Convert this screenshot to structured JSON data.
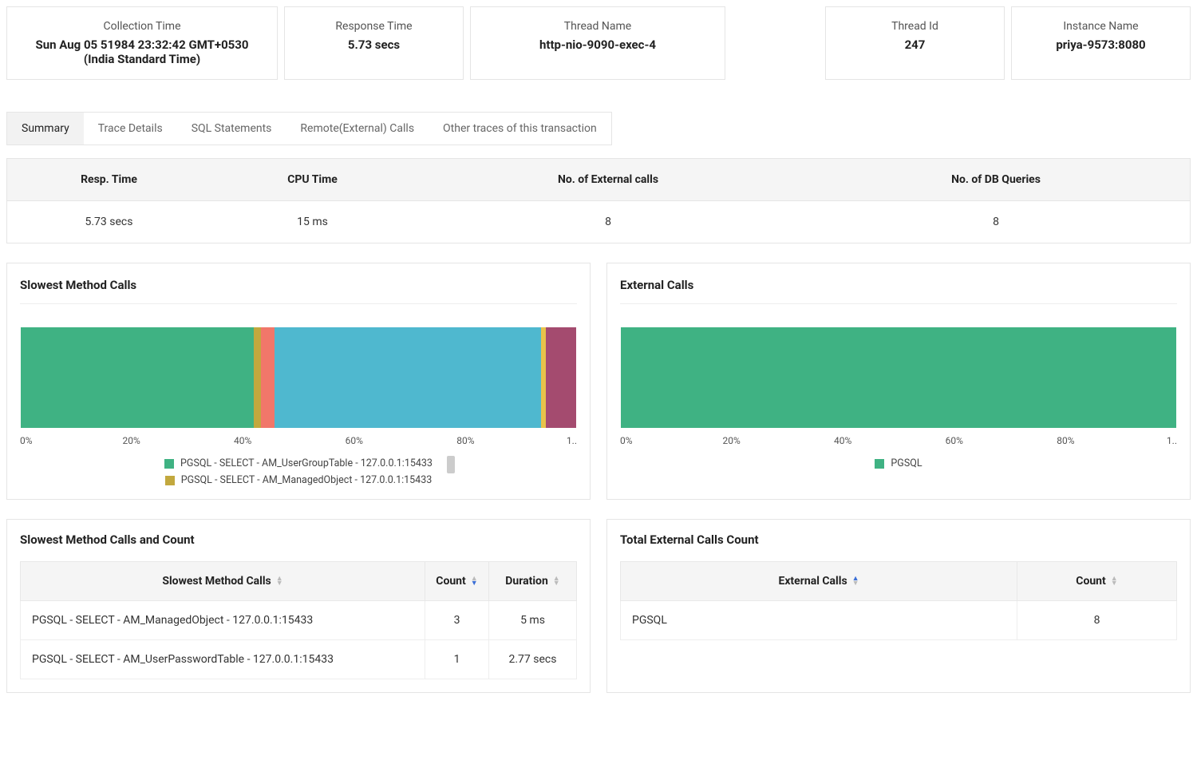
{
  "colors": {
    "green": "#3fb283",
    "olive": "#c2a83e",
    "coral": "#f1776a",
    "teal": "#4fb8cf",
    "gold": "#e8c24a",
    "plum": "#a44b6f",
    "panel_border": "#e5e5e5",
    "header_bg": "#f5f5f5"
  },
  "info_cards": [
    {
      "label": "Collection Time",
      "value": "Sun Aug 05 51984 23:32:42 GMT+0530 (India Standard Time)"
    },
    {
      "label": "Response Time",
      "value": "5.73 secs"
    },
    {
      "label": "Thread Name",
      "value": "http-nio-9090-exec-4"
    },
    {
      "label": "Thread Id",
      "value": "247"
    },
    {
      "label": "Instance Name",
      "value": "priya-9573:8080"
    }
  ],
  "tabs": [
    {
      "label": "Summary",
      "active": true
    },
    {
      "label": "Trace Details",
      "active": false
    },
    {
      "label": "SQL Statements",
      "active": false
    },
    {
      "label": "Remote(External) Calls",
      "active": false
    },
    {
      "label": "Other traces of this transaction",
      "active": false
    }
  ],
  "stats": {
    "headers": [
      "Resp. Time",
      "CPU Time",
      "No. of External calls",
      "No. of DB Queries"
    ],
    "values": [
      "5.73 secs",
      "15 ms",
      "8",
      "8"
    ]
  },
  "slowest_chart": {
    "title": "Slowest Method Calls",
    "segments": [
      {
        "pct": 42,
        "color": "#3fb283"
      },
      {
        "pct": 1.2,
        "color": "#c2a83e"
      },
      {
        "pct": 2.5,
        "color": "#f1776a"
      },
      {
        "pct": 48,
        "color": "#4fb8cf"
      },
      {
        "pct": 0.8,
        "color": "#e8c24a"
      },
      {
        "pct": 5.5,
        "color": "#a44b6f"
      }
    ],
    "axis_ticks": [
      "0%",
      "20%",
      "40%",
      "60%",
      "80%",
      "1.."
    ],
    "legend": [
      {
        "color": "#3fb283",
        "label": "PGSQL - SELECT - AM_UserGroupTable - 127.0.0.1:15433"
      },
      {
        "color": "#c2a83e",
        "label": "PGSQL - SELECT - AM_ManagedObject - 127.0.0.1:15433"
      }
    ]
  },
  "external_chart": {
    "title": "External Calls",
    "segments": [
      {
        "pct": 100,
        "color": "#3fb283"
      }
    ],
    "axis_ticks": [
      "0%",
      "20%",
      "40%",
      "60%",
      "80%",
      "1.."
    ],
    "legend": [
      {
        "color": "#3fb283",
        "label": "PGSQL"
      }
    ]
  },
  "slowest_table": {
    "title": "Slowest Method Calls and Count",
    "columns": [
      "Slowest Method Calls",
      "Count",
      "Duration"
    ],
    "sort_col": 1,
    "sort_dir": "down",
    "rows": [
      [
        "PGSQL - SELECT - AM_ManagedObject - 127.0.0.1:15433",
        "3",
        "5 ms"
      ],
      [
        "PGSQL - SELECT - AM_UserPasswordTable - 127.0.0.1:15433",
        "1",
        "2.77 secs"
      ]
    ]
  },
  "external_table": {
    "title": "Total External Calls Count",
    "columns": [
      "External Calls",
      "Count"
    ],
    "sort_col": 0,
    "sort_dir": "up",
    "rows": [
      [
        "PGSQL",
        "8"
      ]
    ]
  }
}
